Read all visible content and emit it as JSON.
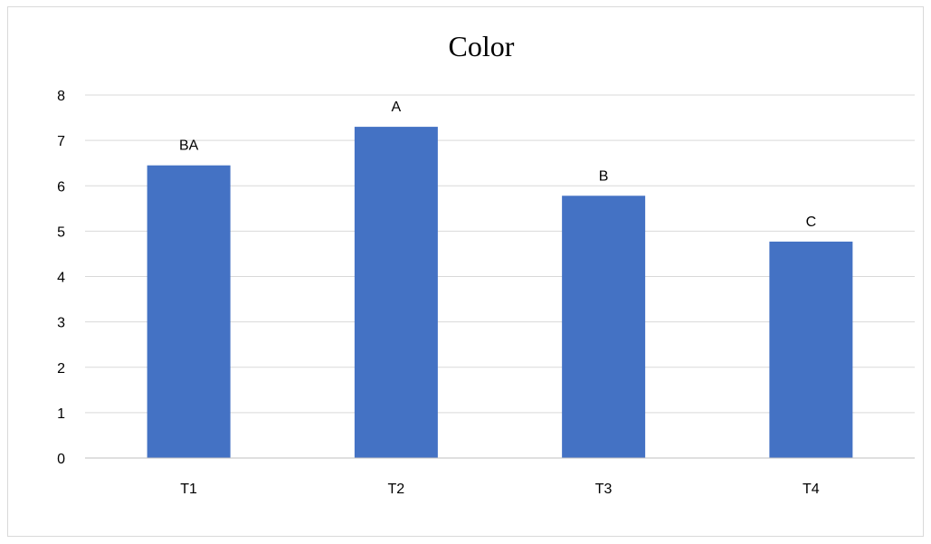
{
  "chart_data": {
    "type": "bar",
    "title": "Color",
    "xlabel": "",
    "ylabel": "",
    "categories": [
      "T1",
      "T2",
      "T3",
      "T4"
    ],
    "values": [
      6.45,
      7.3,
      5.78,
      4.77
    ],
    "data_labels": [
      "BA",
      "A",
      "B",
      "C"
    ],
    "ylim": [
      0,
      8
    ],
    "yticks": [
      "0",
      "1",
      "2",
      "3",
      "4",
      "5",
      "6",
      "7",
      "8"
    ],
    "grid": true,
    "legend": "none",
    "bar_color": "#4472c4"
  }
}
